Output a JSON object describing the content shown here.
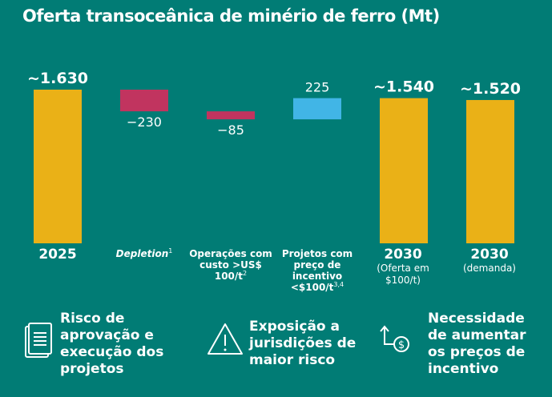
{
  "chart_data": {
    "type": "waterfall",
    "title": "Oferta transoceânica de minério de ferro (Mt)",
    "categories": [
      "2025",
      "Depletion",
      "Operações com custo >US$ 100/t",
      "Projetos com preço de incentivo <$100/t",
      "2030 (Oferta em $100/t)",
      "2030 (demanda)"
    ],
    "bars": [
      {
        "label": "~1.630",
        "kind": "total",
        "start": 0,
        "end": 1630
      },
      {
        "label": "−230",
        "kind": "decrease",
        "start": 1630,
        "end": 1400
      },
      {
        "label": "−85",
        "kind": "decrease",
        "start": 1400,
        "end": 1315
      },
      {
        "label": "225",
        "kind": "increase",
        "start": 1315,
        "end": 1540
      },
      {
        "label": "~1.540",
        "kind": "total",
        "start": 0,
        "end": 1540
      },
      {
        "label": "~1.520",
        "kind": "total",
        "start": 0,
        "end": 1520
      }
    ],
    "colors": {
      "total": "#eab117",
      "decrease": "#c1345f",
      "increase": "#41b5e6",
      "background": "#017c75"
    }
  },
  "cats": {
    "c0": "2025",
    "c1": "Depletion",
    "c1_sup": "1",
    "c2": "Operações com custo >US$ 100/t",
    "c2_sup": "2",
    "c3": "Projetos com preço de incentivo <$100/t",
    "c3_sup": "3,4",
    "c4": "2030",
    "c4_sub": "(Oferta em $100/t)",
    "c5": "2030",
    "c5_sub": "(demanda)"
  },
  "notes": [
    {
      "icon": "document-icon",
      "text": "Risco de aprovação e execução dos projetos"
    },
    {
      "icon": "warning-icon",
      "text": "Exposição a jurisdições de maior risco"
    },
    {
      "icon": "price-increase-icon",
      "text": "Necessidade de aumentar os preços de incentivo"
    }
  ]
}
